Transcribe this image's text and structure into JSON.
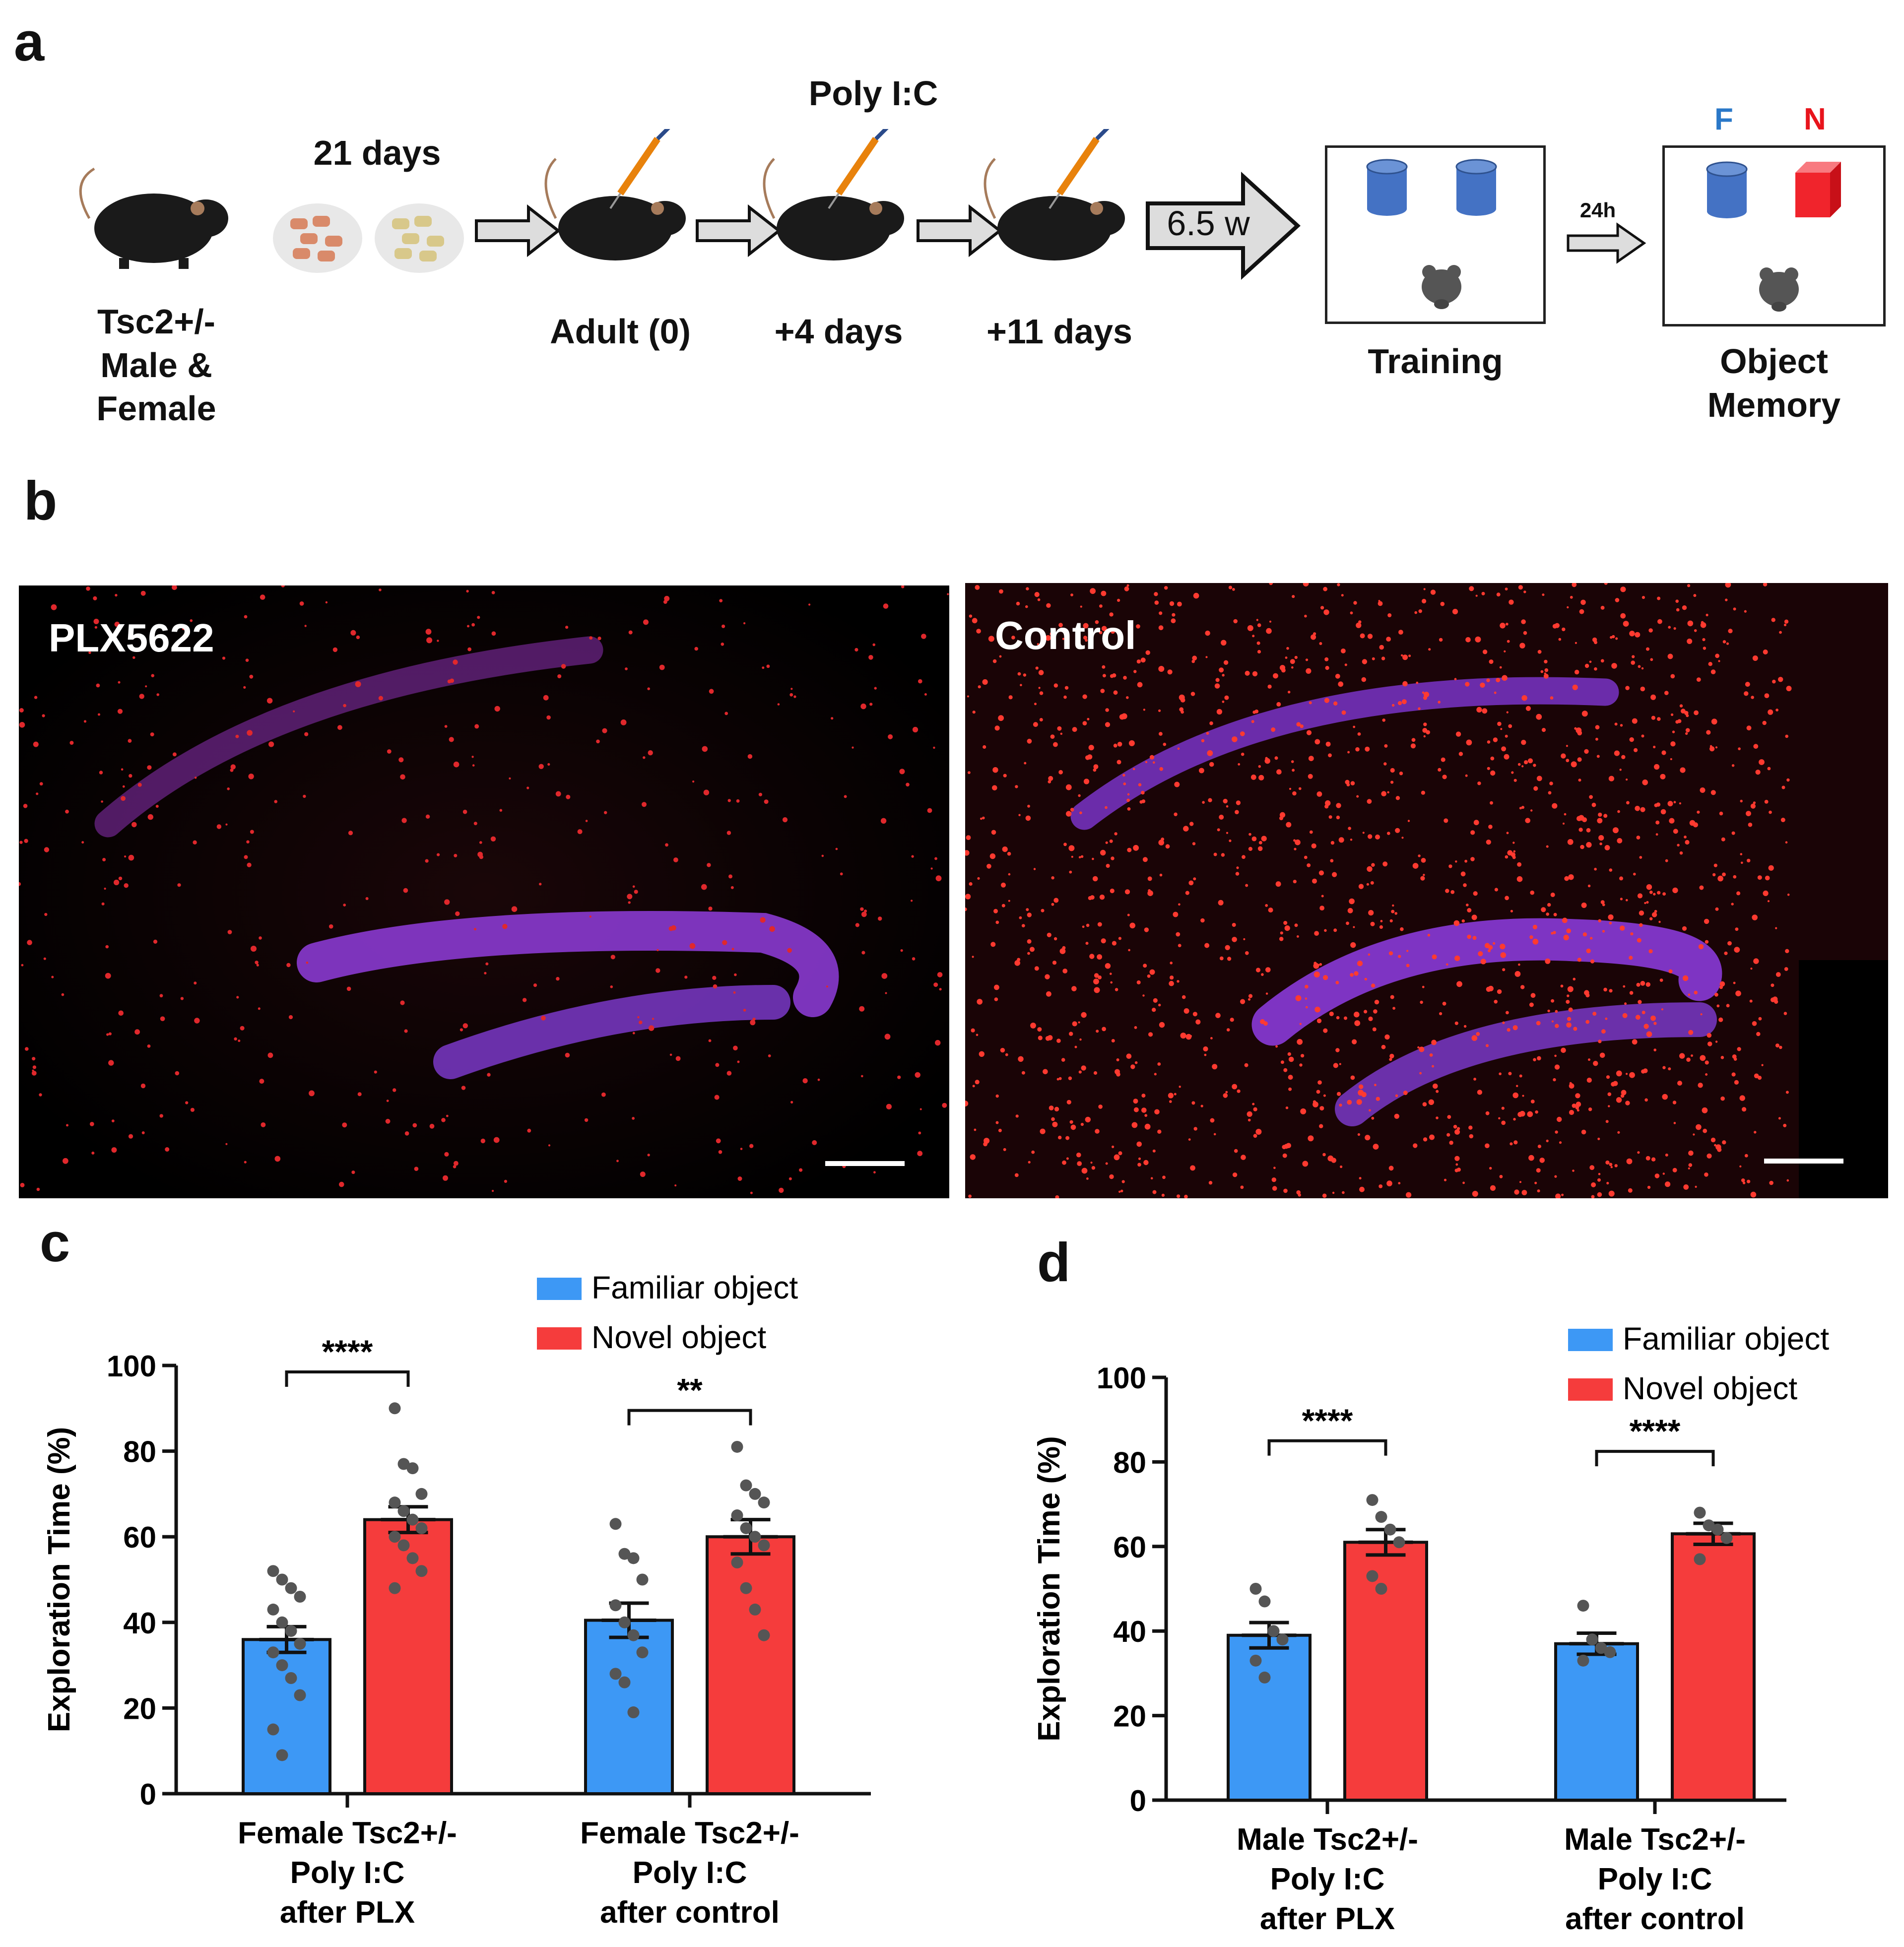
{
  "panel_a": {
    "letter": "a",
    "diet_label": "21 days",
    "injection_label": "Poly I:C",
    "wait_label": "6.5 w",
    "delay_label": "24h",
    "mouse_label": "Tsc2+/-\nMale &\nFemale",
    "timepoints": [
      "Adult (0)",
      "+4 days",
      "+11 days"
    ],
    "training_label": "Training",
    "memory_label": "Object\nMemory",
    "familiar_marker": "F",
    "novel_marker": "N"
  },
  "panel_b": {
    "letter": "b",
    "left_title": "PLX5622",
    "right_title": "Control"
  },
  "chart_data": [
    {
      "panel": "c",
      "type": "bar",
      "ylabel": "Exploration Time (%)",
      "ylim": [
        0,
        100
      ],
      "yticks": [
        0,
        20,
        40,
        60,
        80,
        100
      ],
      "categories": [
        "Female Tsc2+/-\nPoly I:C\nafter PLX",
        "Female Tsc2+/-\nPoly I:C\nafter control"
      ],
      "series": [
        {
          "name": "Familiar object",
          "color": "#3d98f5",
          "values": [
            36,
            40.5
          ],
          "sem": [
            3,
            4
          ],
          "points": [
            [
              52,
              50,
              48,
              46,
              43,
              40,
              38,
              35,
              33,
              30,
              27,
              23,
              15,
              9
            ],
            [
              63,
              56,
              55,
              50,
              44,
              40,
              37,
              33,
              28,
              26,
              19
            ]
          ]
        },
        {
          "name": "Novel object",
          "color": "#f53c3c",
          "values": [
            64,
            60
          ],
          "sem": [
            3,
            4
          ],
          "points": [
            [
              90,
              77,
              76,
              70,
              68,
              66,
              64,
              62,
              60,
              58,
              55,
              52,
              48
            ],
            [
              81,
              72,
              70,
              68,
              65,
              62,
              60,
              58,
              54,
              48,
              43,
              37
            ]
          ]
        }
      ],
      "significance": [
        "****",
        "**"
      ],
      "legend_position": "top-right",
      "grid": false
    },
    {
      "panel": "d",
      "type": "bar",
      "ylabel": "Exploration Time (%)",
      "ylim": [
        0,
        100
      ],
      "yticks": [
        0,
        20,
        40,
        60,
        80,
        100
      ],
      "categories": [
        "Male Tsc2+/-\nPoly I:C\nafter PLX",
        "Male Tsc2+/-\nPoly I:C\nafter control"
      ],
      "series": [
        {
          "name": "Familiar object",
          "color": "#3d98f5",
          "values": [
            39,
            37
          ],
          "sem": [
            3,
            2.5
          ],
          "points": [
            [
              50,
              47,
              40,
              38,
              33,
              29
            ],
            [
              46,
              38,
              36,
              35,
              33
            ]
          ]
        },
        {
          "name": "Novel object",
          "color": "#f53c3c",
          "values": [
            61,
            63
          ],
          "sem": [
            3,
            2.5
          ],
          "points": [
            [
              71,
              67,
              64,
              61,
              53,
              50
            ],
            [
              68,
              65,
              64,
              62,
              57
            ]
          ]
        }
      ],
      "significance": [
        "****",
        "****"
      ],
      "legend_position": "top-right",
      "grid": false
    }
  ]
}
